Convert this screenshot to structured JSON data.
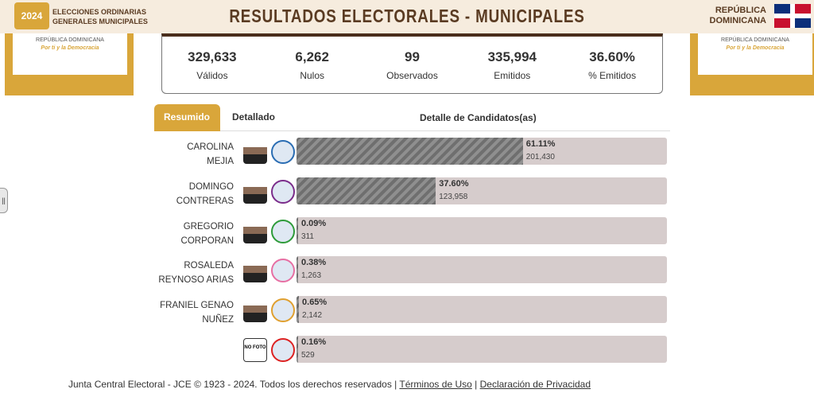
{
  "header": {
    "logo_text": "2024",
    "event_line1": "ELECCIONES ORDINARIAS",
    "event_line2": "GENERALES MUNICIPALES",
    "title": "RESULTADOS ELECTORALES - MUNICIPALES",
    "country_line1": "REPÚBLICA",
    "country_line2": "DOMINICANA"
  },
  "side": {
    "line1": "REPÚBLICA DOMINICANA",
    "line2": "Por ti y la Democracia"
  },
  "stats": [
    {
      "value": "329,633",
      "label": "Válidos"
    },
    {
      "value": "6,262",
      "label": "Nulos"
    },
    {
      "value": "99",
      "label": "Observados"
    },
    {
      "value": "335,994",
      "label": "Emitidos"
    },
    {
      "value": "36.60%",
      "label": "% Emitidos"
    }
  ],
  "tabs": {
    "resumido": "Resumido",
    "detallado": "Detallado",
    "heading": "Detalle de Candidatos(as)"
  },
  "candidates": [
    {
      "name1": "CAROLINA",
      "name2": "MEJIA",
      "pct": "61.11%",
      "pct_value": 61.11,
      "votes": "201,430",
      "party_color": "#2a6db3"
    },
    {
      "name1": "DOMINGO",
      "name2": "CONTRERAS",
      "pct": "37.60%",
      "pct_value": 37.6,
      "votes": "123,958",
      "party_color": "#7b2d8b"
    },
    {
      "name1": "GREGORIO",
      "name2": "CORPORAN",
      "pct": "0.09%",
      "pct_value": 0.09,
      "votes": "311",
      "party_color": "#2e9b3a"
    },
    {
      "name1": "ROSALEDA",
      "name2": "REYNOSO ARIAS",
      "pct": "0.38%",
      "pct_value": 0.38,
      "votes": "1,263",
      "party_color": "#e76fa3"
    },
    {
      "name1": "FRANIEL GENAO",
      "name2": "NUÑEZ",
      "pct": "0.65%",
      "pct_value": 0.65,
      "votes": "2,142",
      "party_color": "#e0a030"
    },
    {
      "name1": "",
      "name2": "",
      "photo_text": "NO FOTO",
      "pct": "0.16%",
      "pct_value": 0.16,
      "votes": "529",
      "party_color": "#d22"
    }
  ],
  "footer": {
    "text": "Junta Central Electoral - JCE © 1923 - 2024. Todos los derechos reservados |",
    "terms": "Términos de Uso",
    "sep": "|",
    "privacy": "Declaración de Privacidad"
  },
  "handle": "||"
}
